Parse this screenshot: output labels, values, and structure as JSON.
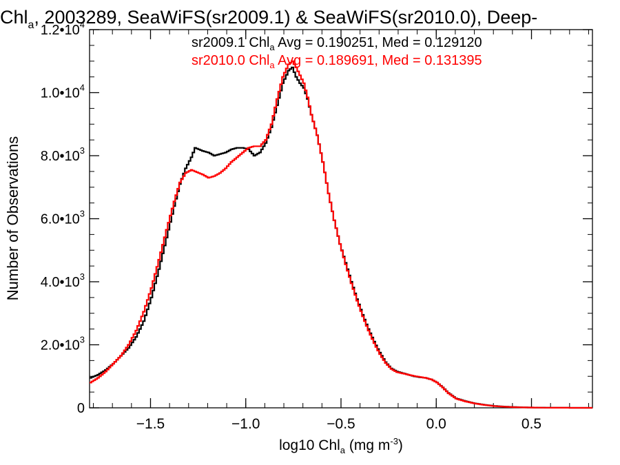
{
  "chart_data": {
    "type": "line",
    "title_main": "Chl",
    "title_sub": "a",
    "title_rest": ", 2003289, SeaWiFS(sr2009.1) & SeaWiFS(sr2010.0), Deep-",
    "xlabel_main": "log10 Chl",
    "xlabel_sub": "a",
    "xlabel_unit": " (mg m",
    "xlabel_unit_sup": "-3",
    "xlabel_close": ")",
    "ylabel": "Number of Observations",
    "xlim": [
      -1.82,
      0.82
    ],
    "ylim": [
      0,
      12000
    ],
    "xticks": [
      {
        "value": -1.5,
        "label": "−1.5"
      },
      {
        "value": -1.0,
        "label": "−1.0"
      },
      {
        "value": -0.5,
        "label": "−0.5"
      },
      {
        "value": 0.0,
        "label": "0.0"
      },
      {
        "value": 0.5,
        "label": "0.5"
      }
    ],
    "yticks": [
      {
        "value": 0,
        "mantissa": "0",
        "exp": ""
      },
      {
        "value": 2000,
        "mantissa": "2.0•10",
        "exp": "3"
      },
      {
        "value": 4000,
        "mantissa": "4.0•10",
        "exp": "3"
      },
      {
        "value": 6000,
        "mantissa": "6.0•10",
        "exp": "3"
      },
      {
        "value": 8000,
        "mantissa": "8.0•10",
        "exp": "3"
      },
      {
        "value": 10000,
        "mantissa": "1.0•10",
        "exp": "4"
      },
      {
        "value": 12000,
        "mantissa": "1.2•10",
        "exp": "4"
      }
    ],
    "grid": false,
    "legend_position": "top-right",
    "series": [
      {
        "name": "sr2009.1",
        "color": "#000000",
        "legend_pre": "sr2009.1 Chl",
        "legend_sub": "a",
        "legend_post": " Avg = 0.190251, Med = 0.129120",
        "x": [
          -1.82,
          -1.78,
          -1.74,
          -1.7,
          -1.66,
          -1.62,
          -1.58,
          -1.54,
          -1.5,
          -1.46,
          -1.42,
          -1.38,
          -1.35,
          -1.32,
          -1.29,
          -1.27,
          -1.25,
          -1.23,
          -1.2,
          -1.17,
          -1.14,
          -1.11,
          -1.08,
          -1.05,
          -1.02,
          -0.99,
          -0.96,
          -0.93,
          -0.9,
          -0.87,
          -0.84,
          -0.81,
          -0.78,
          -0.76,
          -0.74,
          -0.72,
          -0.7,
          -0.68,
          -0.66,
          -0.63,
          -0.6,
          -0.57,
          -0.54,
          -0.51,
          -0.48,
          -0.45,
          -0.42,
          -0.39,
          -0.36,
          -0.33,
          -0.3,
          -0.27,
          -0.24,
          -0.21,
          -0.18,
          -0.15,
          -0.12,
          -0.09,
          -0.06,
          -0.03,
          0.0,
          0.03,
          0.06,
          0.1,
          0.15,
          0.2,
          0.25,
          0.3,
          0.35,
          0.4,
          0.45,
          0.5,
          0.55,
          0.6,
          0.65,
          0.7,
          0.75,
          0.82
        ],
        "y": [
          950,
          1050,
          1200,
          1400,
          1650,
          1900,
          2250,
          2750,
          3500,
          4400,
          5400,
          6400,
          7100,
          7600,
          7950,
          8250,
          8200,
          8150,
          8100,
          8000,
          8050,
          8100,
          8200,
          8250,
          8250,
          8200,
          8000,
          8100,
          8400,
          8900,
          9600,
          10300,
          10700,
          10800,
          10500,
          10300,
          10150,
          9800,
          9300,
          8650,
          7800,
          6800,
          5950,
          5200,
          4600,
          4000,
          3450,
          2950,
          2500,
          2100,
          1750,
          1450,
          1250,
          1150,
          1100,
          1050,
          1000,
          970,
          950,
          900,
          800,
          650,
          470,
          300,
          210,
          140,
          95,
          60,
          40,
          25,
          15,
          10,
          6,
          4,
          2,
          1,
          1,
          0
        ]
      },
      {
        "name": "sr2010.0",
        "color": "#ff0000",
        "legend_pre": "sr2010.0 Chl",
        "legend_sub": "a",
        "legend_post": " Avg = 0.189691, Med = 0.131395",
        "x": [
          -1.82,
          -1.78,
          -1.74,
          -1.7,
          -1.66,
          -1.62,
          -1.58,
          -1.54,
          -1.5,
          -1.46,
          -1.42,
          -1.38,
          -1.35,
          -1.32,
          -1.29,
          -1.27,
          -1.25,
          -1.23,
          -1.2,
          -1.17,
          -1.14,
          -1.11,
          -1.08,
          -1.05,
          -1.02,
          -0.99,
          -0.96,
          -0.93,
          -0.9,
          -0.87,
          -0.84,
          -0.81,
          -0.78,
          -0.76,
          -0.74,
          -0.72,
          -0.7,
          -0.68,
          -0.66,
          -0.63,
          -0.6,
          -0.57,
          -0.54,
          -0.51,
          -0.48,
          -0.45,
          -0.42,
          -0.39,
          -0.36,
          -0.33,
          -0.3,
          -0.27,
          -0.24,
          -0.21,
          -0.18,
          -0.15,
          -0.12,
          -0.09,
          -0.06,
          -0.03,
          0.0,
          0.03,
          0.06,
          0.1,
          0.15,
          0.2,
          0.25,
          0.3,
          0.35,
          0.4,
          0.45,
          0.5,
          0.55,
          0.6,
          0.65,
          0.7,
          0.75,
          0.82
        ],
        "y": [
          800,
          950,
          1150,
          1400,
          1650,
          2000,
          2450,
          3050,
          3800,
          4700,
          5650,
          6550,
          7150,
          7450,
          7550,
          7500,
          7450,
          7400,
          7300,
          7350,
          7450,
          7600,
          7800,
          7950,
          8100,
          8250,
          8300,
          8300,
          8500,
          9000,
          9800,
          10500,
          10900,
          11000,
          10800,
          10550,
          10300,
          9850,
          9300,
          8650,
          7800,
          6800,
          5950,
          5200,
          4550,
          3950,
          3400,
          2900,
          2450,
          2050,
          1700,
          1420,
          1230,
          1130,
          1090,
          1050,
          1010,
          980,
          950,
          900,
          800,
          640,
          460,
          290,
          200,
          135,
          90,
          55,
          35,
          22,
          14,
          9,
          5,
          3,
          2,
          1,
          1,
          0
        ]
      }
    ]
  }
}
